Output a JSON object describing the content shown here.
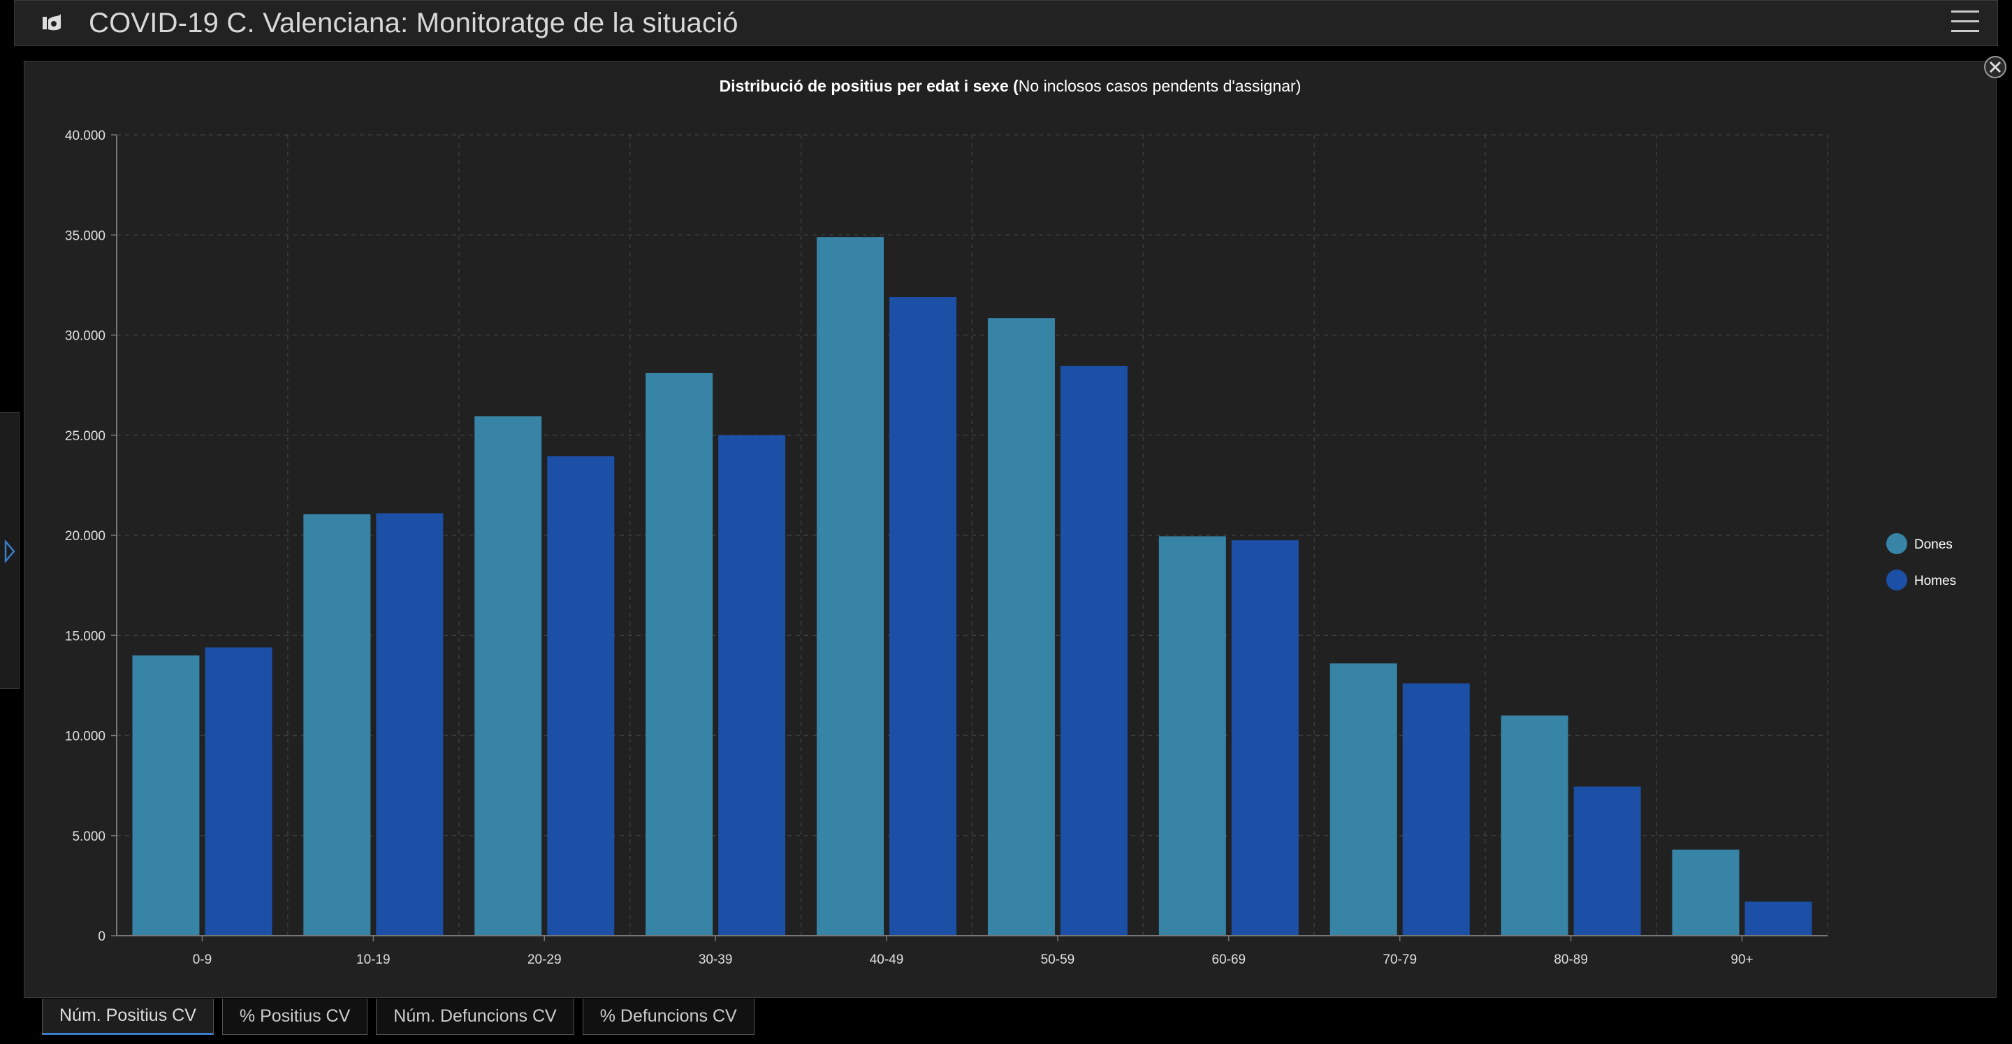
{
  "header": {
    "title": "COVID-19 C. Valenciana: Monitoratge de la situació",
    "logo_icon": "gva-logo-icon",
    "menu_icon": "hamburger-menu-icon"
  },
  "tabs": [
    {
      "label": "Núm. Positius CV",
      "active": true
    },
    {
      "label": "% Positius CV",
      "active": false
    },
    {
      "label": "Núm. Defuncions CV",
      "active": false
    },
    {
      "label": "% Defuncions CV",
      "active": false
    }
  ],
  "colors": {
    "dones": "#3784a6",
    "homes": "#1c4fa6"
  },
  "chart_data": {
    "type": "bar",
    "title_bold": "Distribució de positius per edat i sexe (",
    "title_normal": "No inclosos casos pendents d'assignar)",
    "categories": [
      "0-9",
      "10-19",
      "20-29",
      "30-39",
      "40-49",
      "50-59",
      "60-69",
      "70-79",
      "80-89",
      "90+"
    ],
    "series": [
      {
        "name": "Dones",
        "values": [
          14000,
          21050,
          25950,
          28100,
          34900,
          30850,
          19950,
          13600,
          11000,
          4300
        ]
      },
      {
        "name": "Homes",
        "values": [
          14400,
          21100,
          23950,
          25000,
          31900,
          28450,
          19750,
          12600,
          7450,
          1700
        ]
      }
    ],
    "ylim": [
      0,
      40000
    ],
    "yticks": [
      0,
      5000,
      10000,
      15000,
      20000,
      25000,
      30000,
      35000,
      40000
    ],
    "ytick_labels": [
      "0",
      "5.000",
      "10.000",
      "15.000",
      "20.000",
      "25.000",
      "30.000",
      "35.000",
      "40.000"
    ],
    "grid": true,
    "legend_position": "right"
  }
}
